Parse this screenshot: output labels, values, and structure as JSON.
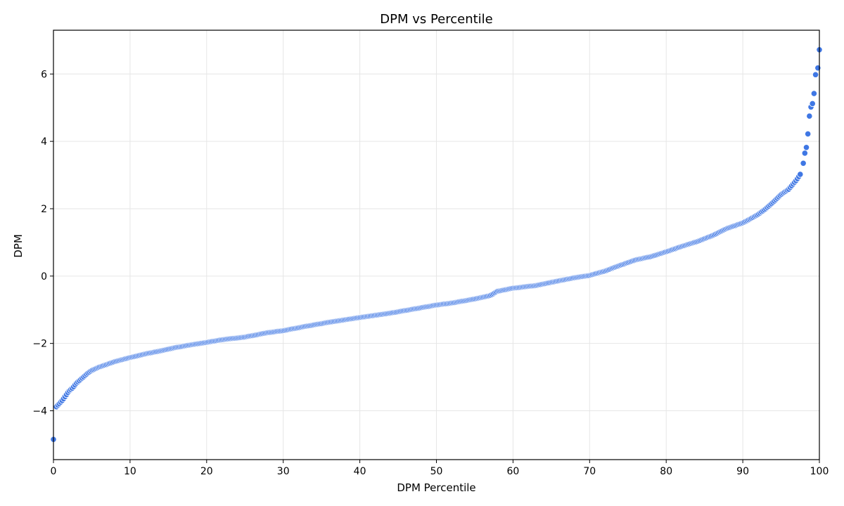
{
  "chart_data": {
    "type": "scatter",
    "title": "DPM vs Percentile",
    "xlabel": "DPM Percentile",
    "ylabel": "DPM",
    "xlim": [
      0,
      100
    ],
    "ylim": [
      -5.45,
      7.3
    ],
    "xticks": [
      0,
      10,
      20,
      30,
      40,
      50,
      60,
      70,
      80,
      90,
      100
    ],
    "yticks": [
      -4,
      -2,
      0,
      2,
      4,
      6
    ],
    "grid": true,
    "marker_color": "#3f77e4",
    "curve_points": [
      [
        0.0,
        -4.85
      ],
      [
        0.2,
        -3.93
      ],
      [
        0.5,
        -3.85
      ],
      [
        0.8,
        -3.78
      ],
      [
        1.2,
        -3.68
      ],
      [
        1.6,
        -3.55
      ],
      [
        2.0,
        -3.42
      ],
      [
        2.5,
        -3.32
      ],
      [
        3.0,
        -3.18
      ],
      [
        3.5,
        -3.08
      ],
      [
        4.0,
        -2.98
      ],
      [
        4.5,
        -2.88
      ],
      [
        5.0,
        -2.8
      ],
      [
        6.0,
        -2.7
      ],
      [
        7.0,
        -2.62
      ],
      [
        8.0,
        -2.54
      ],
      [
        9.0,
        -2.48
      ],
      [
        10.0,
        -2.42
      ],
      [
        12.0,
        -2.31
      ],
      [
        14.0,
        -2.22
      ],
      [
        16.0,
        -2.12
      ],
      [
        18.0,
        -2.04
      ],
      [
        20.0,
        -1.97
      ],
      [
        22.0,
        -1.89
      ],
      [
        25.0,
        -1.81
      ],
      [
        28.0,
        -1.68
      ],
      [
        30.0,
        -1.62
      ],
      [
        33.0,
        -1.49
      ],
      [
        36.0,
        -1.37
      ],
      [
        40.0,
        -1.23
      ],
      [
        44.0,
        -1.1
      ],
      [
        48.0,
        -0.94
      ],
      [
        50.0,
        -0.86
      ],
      [
        52.0,
        -0.8
      ],
      [
        55.0,
        -0.68
      ],
      [
        57.0,
        -0.58
      ],
      [
        58.0,
        -0.45
      ],
      [
        60.0,
        -0.36
      ],
      [
        63.0,
        -0.28
      ],
      [
        66.0,
        -0.14
      ],
      [
        68.0,
        -0.05
      ],
      [
        70.0,
        0.02
      ],
      [
        72.0,
        0.15
      ],
      [
        74.0,
        0.32
      ],
      [
        76.0,
        0.48
      ],
      [
        78.0,
        0.58
      ],
      [
        80.0,
        0.72
      ],
      [
        82.0,
        0.88
      ],
      [
        84.0,
        1.02
      ],
      [
        86.0,
        1.2
      ],
      [
        88.0,
        1.42
      ],
      [
        90.0,
        1.58
      ],
      [
        91.0,
        1.7
      ],
      [
        92.0,
        1.83
      ],
      [
        93.0,
        2.0
      ],
      [
        94.0,
        2.2
      ],
      [
        95.0,
        2.42
      ],
      [
        96.0,
        2.58
      ],
      [
        97.0,
        2.85
      ],
      [
        97.5,
        3.02
      ],
      [
        97.9,
        3.35
      ],
      [
        98.1,
        3.65
      ],
      [
        98.3,
        3.82
      ],
      [
        98.5,
        4.22
      ],
      [
        98.7,
        4.75
      ],
      [
        98.9,
        5.02
      ],
      [
        99.1,
        5.12
      ],
      [
        99.3,
        5.42
      ],
      [
        99.5,
        5.98
      ],
      [
        99.8,
        6.18
      ],
      [
        100.0,
        6.72
      ]
    ],
    "point_count": 520
  }
}
